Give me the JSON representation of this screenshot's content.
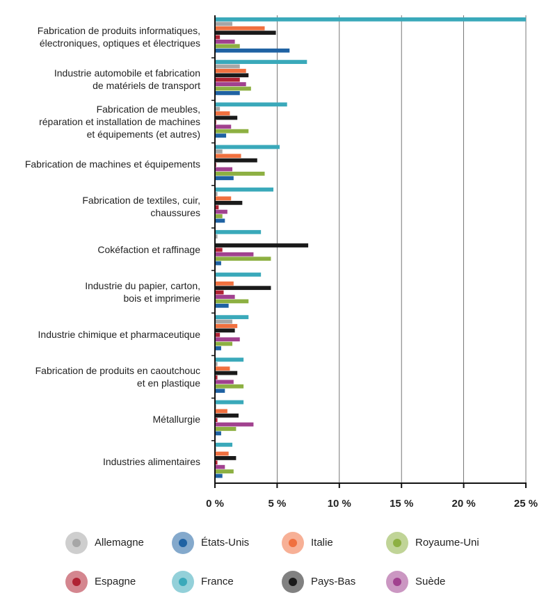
{
  "chart_data": {
    "type": "hbar",
    "categories": [
      "Fabrication de produits informatiques,\nélectroniques, optiques et électriques",
      "Industrie automobile et fabrication\nde matériels de transport",
      "Fabrication de meubles,\nréparation et installation de machines\net équipements (et autres)",
      "Fabrication de machines et équipements",
      "Fabrication de textiles, cuir,\nchaussures",
      "Cokéfaction et raffinage",
      "Industrie du papier, carton,\nbois et imprimerie",
      "Industrie chimique et pharmaceutique",
      "Fabrication de produits en caoutchouc\net en plastique",
      "Métallurgie",
      "Industries alimentaires"
    ],
    "series": [
      {
        "name": "Allemagne",
        "color": "#a6a6a6",
        "values": [
          1.4,
          2.0,
          0.4,
          0.6,
          0.2,
          0.2,
          0.1,
          1.4,
          0.2,
          0.1,
          0.1
        ]
      },
      {
        "name": "États-Unis",
        "color": "#1f62a3",
        "values": [
          6.0,
          2.0,
          0.9,
          1.5,
          0.8,
          0.5,
          1.1,
          0.5,
          0.8,
          0.5,
          0.6
        ]
      },
      {
        "name": "Italie",
        "color": "#f0703f",
        "values": [
          4.0,
          2.5,
          1.2,
          2.1,
          1.3,
          0,
          1.5,
          1.8,
          1.2,
          1.0,
          1.1
        ]
      },
      {
        "name": "Royaume-Uni",
        "color": "#8db042",
        "values": [
          2.0,
          2.9,
          2.7,
          4.0,
          0.6,
          4.5,
          2.7,
          1.4,
          2.3,
          1.7,
          1.5
        ]
      },
      {
        "name": "Espagne",
        "color": "#b02233",
        "values": [
          0.4,
          2.0,
          0.1,
          0.1,
          0.3,
          0.6,
          0.7,
          0.4,
          0.2,
          0.2,
          0.2
        ]
      },
      {
        "name": "France",
        "color": "#3aa9ba",
        "values": [
          25,
          7.4,
          5.8,
          5.2,
          4.7,
          3.7,
          3.7,
          2.7,
          2.3,
          2.3,
          1.4
        ]
      },
      {
        "name": "Pays-Bas",
        "color": "#1a1a1a",
        "values": [
          4.9,
          2.7,
          1.8,
          3.4,
          2.2,
          7.5,
          4.5,
          1.6,
          1.8,
          1.9,
          1.7
        ]
      },
      {
        "name": "Suède",
        "color": "#a1418f",
        "values": [
          1.6,
          2.5,
          1.3,
          1.4,
          1.0,
          3.1,
          1.6,
          2.0,
          1.5,
          3.1,
          0.8
        ]
      }
    ],
    "xlim": [
      0,
      25
    ],
    "xticks": [
      {
        "value": 0,
        "label": "0 %"
      },
      {
        "value": 5,
        "label": "5 %"
      },
      {
        "value": 10,
        "label": "10 %"
      },
      {
        "value": 15,
        "label": "15 %"
      },
      {
        "value": 20,
        "label": "20 %"
      },
      {
        "value": 25,
        "label": "25 %"
      }
    ],
    "grid": true
  }
}
